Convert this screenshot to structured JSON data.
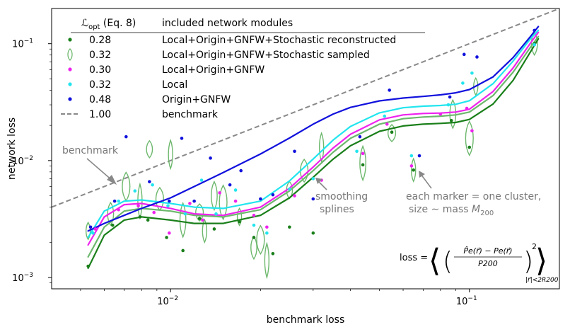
{
  "chart_data": {
    "type": "scatter",
    "xscale": "log",
    "yscale": "log",
    "xlim": [
      0.004,
      0.2
    ],
    "ylim": [
      0.0008,
      0.2
    ],
    "xlabel": "benchmark loss",
    "ylabel": "network loss",
    "x_ticks": [
      {
        "value": 0.01,
        "base": "10",
        "exp": "−2"
      },
      {
        "value": 0.1,
        "base": "10",
        "exp": "−1"
      }
    ],
    "y_ticks": [
      {
        "value": 0.001,
        "base": "10",
        "exp": "−3"
      },
      {
        "value": 0.01,
        "base": "10",
        "exp": "−2"
      },
      {
        "value": 0.1,
        "base": "10",
        "exp": "−1"
      }
    ],
    "legend": {
      "placement": "top-left",
      "col1_header": "ℒ_opt (Eq. 8)",
      "col1_header_main": "ℒ",
      "col1_header_sub": "opt",
      "col1_header_suffix": " (Eq. 8)",
      "col2_header": "included network modules"
    },
    "series": [
      {
        "name": "Local+Origin+GNFW+Stochastic reconstructed",
        "loss": "0.28",
        "color": "#1a7f1a",
        "marker": "dot",
        "points": [
          [
            0.0053,
            0.00125
          ],
          [
            0.0064,
            0.0028
          ],
          [
            0.0079,
            0.0033
          ],
          [
            0.0084,
            0.0031
          ],
          [
            0.0097,
            0.0022
          ],
          [
            0.011,
            0.0017
          ],
          [
            0.0125,
            0.0032
          ],
          [
            0.014,
            0.0026
          ],
          [
            0.017,
            0.003
          ],
          [
            0.019,
            0.0022
          ],
          [
            0.022,
            0.0016
          ],
          [
            0.025,
            0.0027
          ],
          [
            0.03,
            0.0024
          ],
          [
            0.044,
            0.0092
          ],
          [
            0.055,
            0.0175
          ],
          [
            0.065,
            0.0083
          ],
          [
            0.087,
            0.022
          ],
          [
            0.1,
            0.013
          ],
          [
            0.165,
            0.1
          ]
        ],
        "spline": [
          [
            0.0053,
            0.0012
          ],
          [
            0.006,
            0.0023
          ],
          [
            0.007,
            0.0031
          ],
          [
            0.008,
            0.0033
          ],
          [
            0.01,
            0.0031
          ],
          [
            0.012,
            0.0029
          ],
          [
            0.015,
            0.0029
          ],
          [
            0.02,
            0.0034
          ],
          [
            0.025,
            0.0048
          ],
          [
            0.03,
            0.0072
          ],
          [
            0.035,
            0.0103
          ],
          [
            0.04,
            0.0134
          ],
          [
            0.05,
            0.0178
          ],
          [
            0.06,
            0.0198
          ],
          [
            0.07,
            0.0205
          ],
          [
            0.08,
            0.0208
          ],
          [
            0.09,
            0.0212
          ],
          [
            0.1,
            0.0225
          ],
          [
            0.12,
            0.0305
          ],
          [
            0.14,
            0.0485
          ],
          [
            0.16,
            0.085
          ],
          [
            0.17,
            0.11
          ]
        ]
      },
      {
        "name": "Local+Origin+GNFW+Stochastic sampled",
        "loss": "0.32",
        "color": "#6db86d",
        "marker": "violin",
        "points": [
          [
            0.0053,
            0.0025
          ],
          [
            0.0063,
            0.0035
          ],
          [
            0.0071,
            0.006
          ],
          [
            0.0079,
            0.0045
          ],
          [
            0.0085,
            0.0125
          ],
          [
            0.0092,
            0.0047
          ],
          [
            0.01,
            0.0113
          ],
          [
            0.011,
            0.0031
          ],
          [
            0.0125,
            0.0036
          ],
          [
            0.013,
            0.0025
          ],
          [
            0.014,
            0.005
          ],
          [
            0.015,
            0.0044
          ],
          [
            0.017,
            0.0033
          ],
          [
            0.019,
            0.0018
          ],
          [
            0.02,
            0.0021
          ],
          [
            0.021,
            0.0014
          ],
          [
            0.025,
            0.0056
          ],
          [
            0.028,
            0.0082
          ],
          [
            0.032,
            0.013
          ],
          [
            0.044,
            0.0095
          ],
          [
            0.055,
            0.0172
          ],
          [
            0.065,
            0.0083
          ],
          [
            0.088,
            0.025
          ],
          [
            0.1,
            0.0155
          ],
          [
            0.105,
            0.043
          ],
          [
            0.165,
            0.1
          ]
        ],
        "spline": [
          [
            0.0053,
            0.0015
          ],
          [
            0.006,
            0.0027
          ],
          [
            0.007,
            0.0037
          ],
          [
            0.008,
            0.0039
          ],
          [
            0.01,
            0.0037
          ],
          [
            0.012,
            0.0034
          ],
          [
            0.015,
            0.0033
          ],
          [
            0.02,
            0.0038
          ],
          [
            0.025,
            0.0055
          ],
          [
            0.03,
            0.0082
          ],
          [
            0.035,
            0.0118
          ],
          [
            0.04,
            0.0155
          ],
          [
            0.05,
            0.0205
          ],
          [
            0.06,
            0.0228
          ],
          [
            0.07,
            0.0236
          ],
          [
            0.08,
            0.024
          ],
          [
            0.09,
            0.0246
          ],
          [
            0.1,
            0.026
          ],
          [
            0.12,
            0.036
          ],
          [
            0.14,
            0.057
          ],
          [
            0.16,
            0.093
          ],
          [
            0.17,
            0.115
          ]
        ]
      },
      {
        "name": "Local+Origin+GNFW",
        "loss": "0.30",
        "color": "#ee22ee",
        "marker": "dot",
        "points": [
          [
            0.0056,
            0.0026
          ],
          [
            0.0067,
            0.0038
          ],
          [
            0.0078,
            0.0041
          ],
          [
            0.0088,
            0.0036
          ],
          [
            0.0099,
            0.0024
          ],
          [
            0.0116,
            0.0043
          ],
          [
            0.0128,
            0.0031
          ],
          [
            0.0146,
            0.0053
          ],
          [
            0.0165,
            0.0045
          ],
          [
            0.019,
            0.0034
          ],
          [
            0.021,
            0.0027
          ],
          [
            0.026,
            0.005
          ],
          [
            0.032,
            0.0068
          ],
          [
            0.044,
            0.0115
          ],
          [
            0.053,
            0.0205
          ],
          [
            0.064,
            0.009
          ],
          [
            0.08,
            0.025
          ],
          [
            0.098,
            0.028
          ],
          [
            0.102,
            0.018
          ],
          [
            0.165,
            0.098
          ]
        ],
        "spline": [
          [
            0.0053,
            0.0019
          ],
          [
            0.006,
            0.0033
          ],
          [
            0.007,
            0.0042
          ],
          [
            0.008,
            0.0043
          ],
          [
            0.01,
            0.0039
          ],
          [
            0.012,
            0.0035
          ],
          [
            0.015,
            0.0034
          ],
          [
            0.02,
            0.004
          ],
          [
            0.025,
            0.0058
          ],
          [
            0.03,
            0.0088
          ],
          [
            0.035,
            0.0128
          ],
          [
            0.04,
            0.0168
          ],
          [
            0.05,
            0.0223
          ],
          [
            0.06,
            0.0246
          ],
          [
            0.07,
            0.0253
          ],
          [
            0.08,
            0.0255
          ],
          [
            0.09,
            0.026
          ],
          [
            0.1,
            0.0275
          ],
          [
            0.12,
            0.039
          ],
          [
            0.14,
            0.062
          ],
          [
            0.16,
            0.101
          ],
          [
            0.17,
            0.125
          ]
        ]
      },
      {
        "name": "Local",
        "loss": "0.32",
        "color": "#22e5ee",
        "marker": "dot",
        "points": [
          [
            0.0055,
            0.0024
          ],
          [
            0.0067,
            0.0045
          ],
          [
            0.0076,
            0.0055
          ],
          [
            0.0087,
            0.0062
          ],
          [
            0.0098,
            0.0041
          ],
          [
            0.0112,
            0.0035
          ],
          [
            0.0127,
            0.0068
          ],
          [
            0.0142,
            0.0035
          ],
          [
            0.0165,
            0.0056
          ],
          [
            0.019,
            0.0028
          ],
          [
            0.021,
            0.0024
          ],
          [
            0.025,
            0.0057
          ],
          [
            0.03,
            0.007
          ],
          [
            0.042,
            0.012
          ],
          [
            0.052,
            0.024
          ],
          [
            0.064,
            0.011
          ],
          [
            0.085,
            0.03
          ],
          [
            0.095,
            0.046
          ],
          [
            0.102,
            0.056
          ],
          [
            0.165,
            0.098
          ]
        ],
        "spline": [
          [
            0.0053,
            0.0022
          ],
          [
            0.006,
            0.0037
          ],
          [
            0.007,
            0.0045
          ],
          [
            0.008,
            0.0046
          ],
          [
            0.01,
            0.0043
          ],
          [
            0.012,
            0.004
          ],
          [
            0.015,
            0.0039
          ],
          [
            0.02,
            0.0045
          ],
          [
            0.025,
            0.0067
          ],
          [
            0.03,
            0.0103
          ],
          [
            0.035,
            0.015
          ],
          [
            0.04,
            0.0196
          ],
          [
            0.05,
            0.0256
          ],
          [
            0.06,
            0.0283
          ],
          [
            0.07,
            0.0292
          ],
          [
            0.08,
            0.0296
          ],
          [
            0.09,
            0.0303
          ],
          [
            0.1,
            0.0325
          ],
          [
            0.12,
            0.0455
          ],
          [
            0.14,
            0.071
          ],
          [
            0.16,
            0.11
          ],
          [
            0.17,
            0.13
          ]
        ]
      },
      {
        "name": "Origin+GNFW",
        "loss": "0.48",
        "color": "#1111dd",
        "marker": "dot",
        "points": [
          [
            0.0054,
            0.0027
          ],
          [
            0.0065,
            0.0045
          ],
          [
            0.0071,
            0.016
          ],
          [
            0.0085,
            0.0066
          ],
          [
            0.0099,
            0.0045
          ],
          [
            0.0109,
            0.0155
          ],
          [
            0.012,
            0.0045
          ],
          [
            0.0136,
            0.0105
          ],
          [
            0.0158,
            0.0062
          ],
          [
            0.0172,
            0.0082
          ],
          [
            0.02,
            0.0047
          ],
          [
            0.022,
            0.0051
          ],
          [
            0.026,
            0.012
          ],
          [
            0.03,
            0.0047
          ],
          [
            0.043,
            0.016
          ],
          [
            0.054,
            0.04
          ],
          [
            0.068,
            0.011
          ],
          [
            0.086,
            0.035
          ],
          [
            0.096,
            0.081
          ],
          [
            0.106,
            0.077
          ],
          [
            0.165,
            0.13
          ]
        ],
        "spline": [
          [
            0.0053,
            0.0025
          ],
          [
            0.006,
            0.0029
          ],
          [
            0.007,
            0.0034
          ],
          [
            0.008,
            0.0039
          ],
          [
            0.01,
            0.0048
          ],
          [
            0.012,
            0.006
          ],
          [
            0.015,
            0.0079
          ],
          [
            0.02,
            0.0114
          ],
          [
            0.025,
            0.0156
          ],
          [
            0.03,
            0.0205
          ],
          [
            0.035,
            0.025
          ],
          [
            0.04,
            0.0285
          ],
          [
            0.05,
            0.0324
          ],
          [
            0.06,
            0.0343
          ],
          [
            0.07,
            0.0354
          ],
          [
            0.08,
            0.0365
          ],
          [
            0.09,
            0.038
          ],
          [
            0.1,
            0.0405
          ],
          [
            0.12,
            0.052
          ],
          [
            0.14,
            0.076
          ],
          [
            0.16,
            0.115
          ],
          [
            0.17,
            0.14
          ]
        ]
      }
    ],
    "benchmark": {
      "name": "benchmark",
      "loss": "1.00",
      "color": "#888888",
      "style": "dashed",
      "points": [
        [
          0.004,
          0.004
        ],
        [
          0.2,
          0.2
        ]
      ]
    },
    "annotations": {
      "benchmark_label": "benchmark",
      "smoothing_line1": "smoothing",
      "smoothing_line2": "splines",
      "marker_line1": "each marker = one cluster,",
      "marker_line2_prefix": "size ∼ mass ",
      "marker_line2_sym": "M",
      "marker_line2_sub": "200",
      "formula": "loss = ⟨ ( (P̂e(r⃗) − Pe(r⃗)) / P200 )² ⟩ |r⃗|<2R200",
      "formula_lhs": "loss = ",
      "formula_num": "P̂e(r⃗) − Pe(r⃗)",
      "formula_den": "P200",
      "formula_sub": "|r⃗|<2R200"
    }
  }
}
